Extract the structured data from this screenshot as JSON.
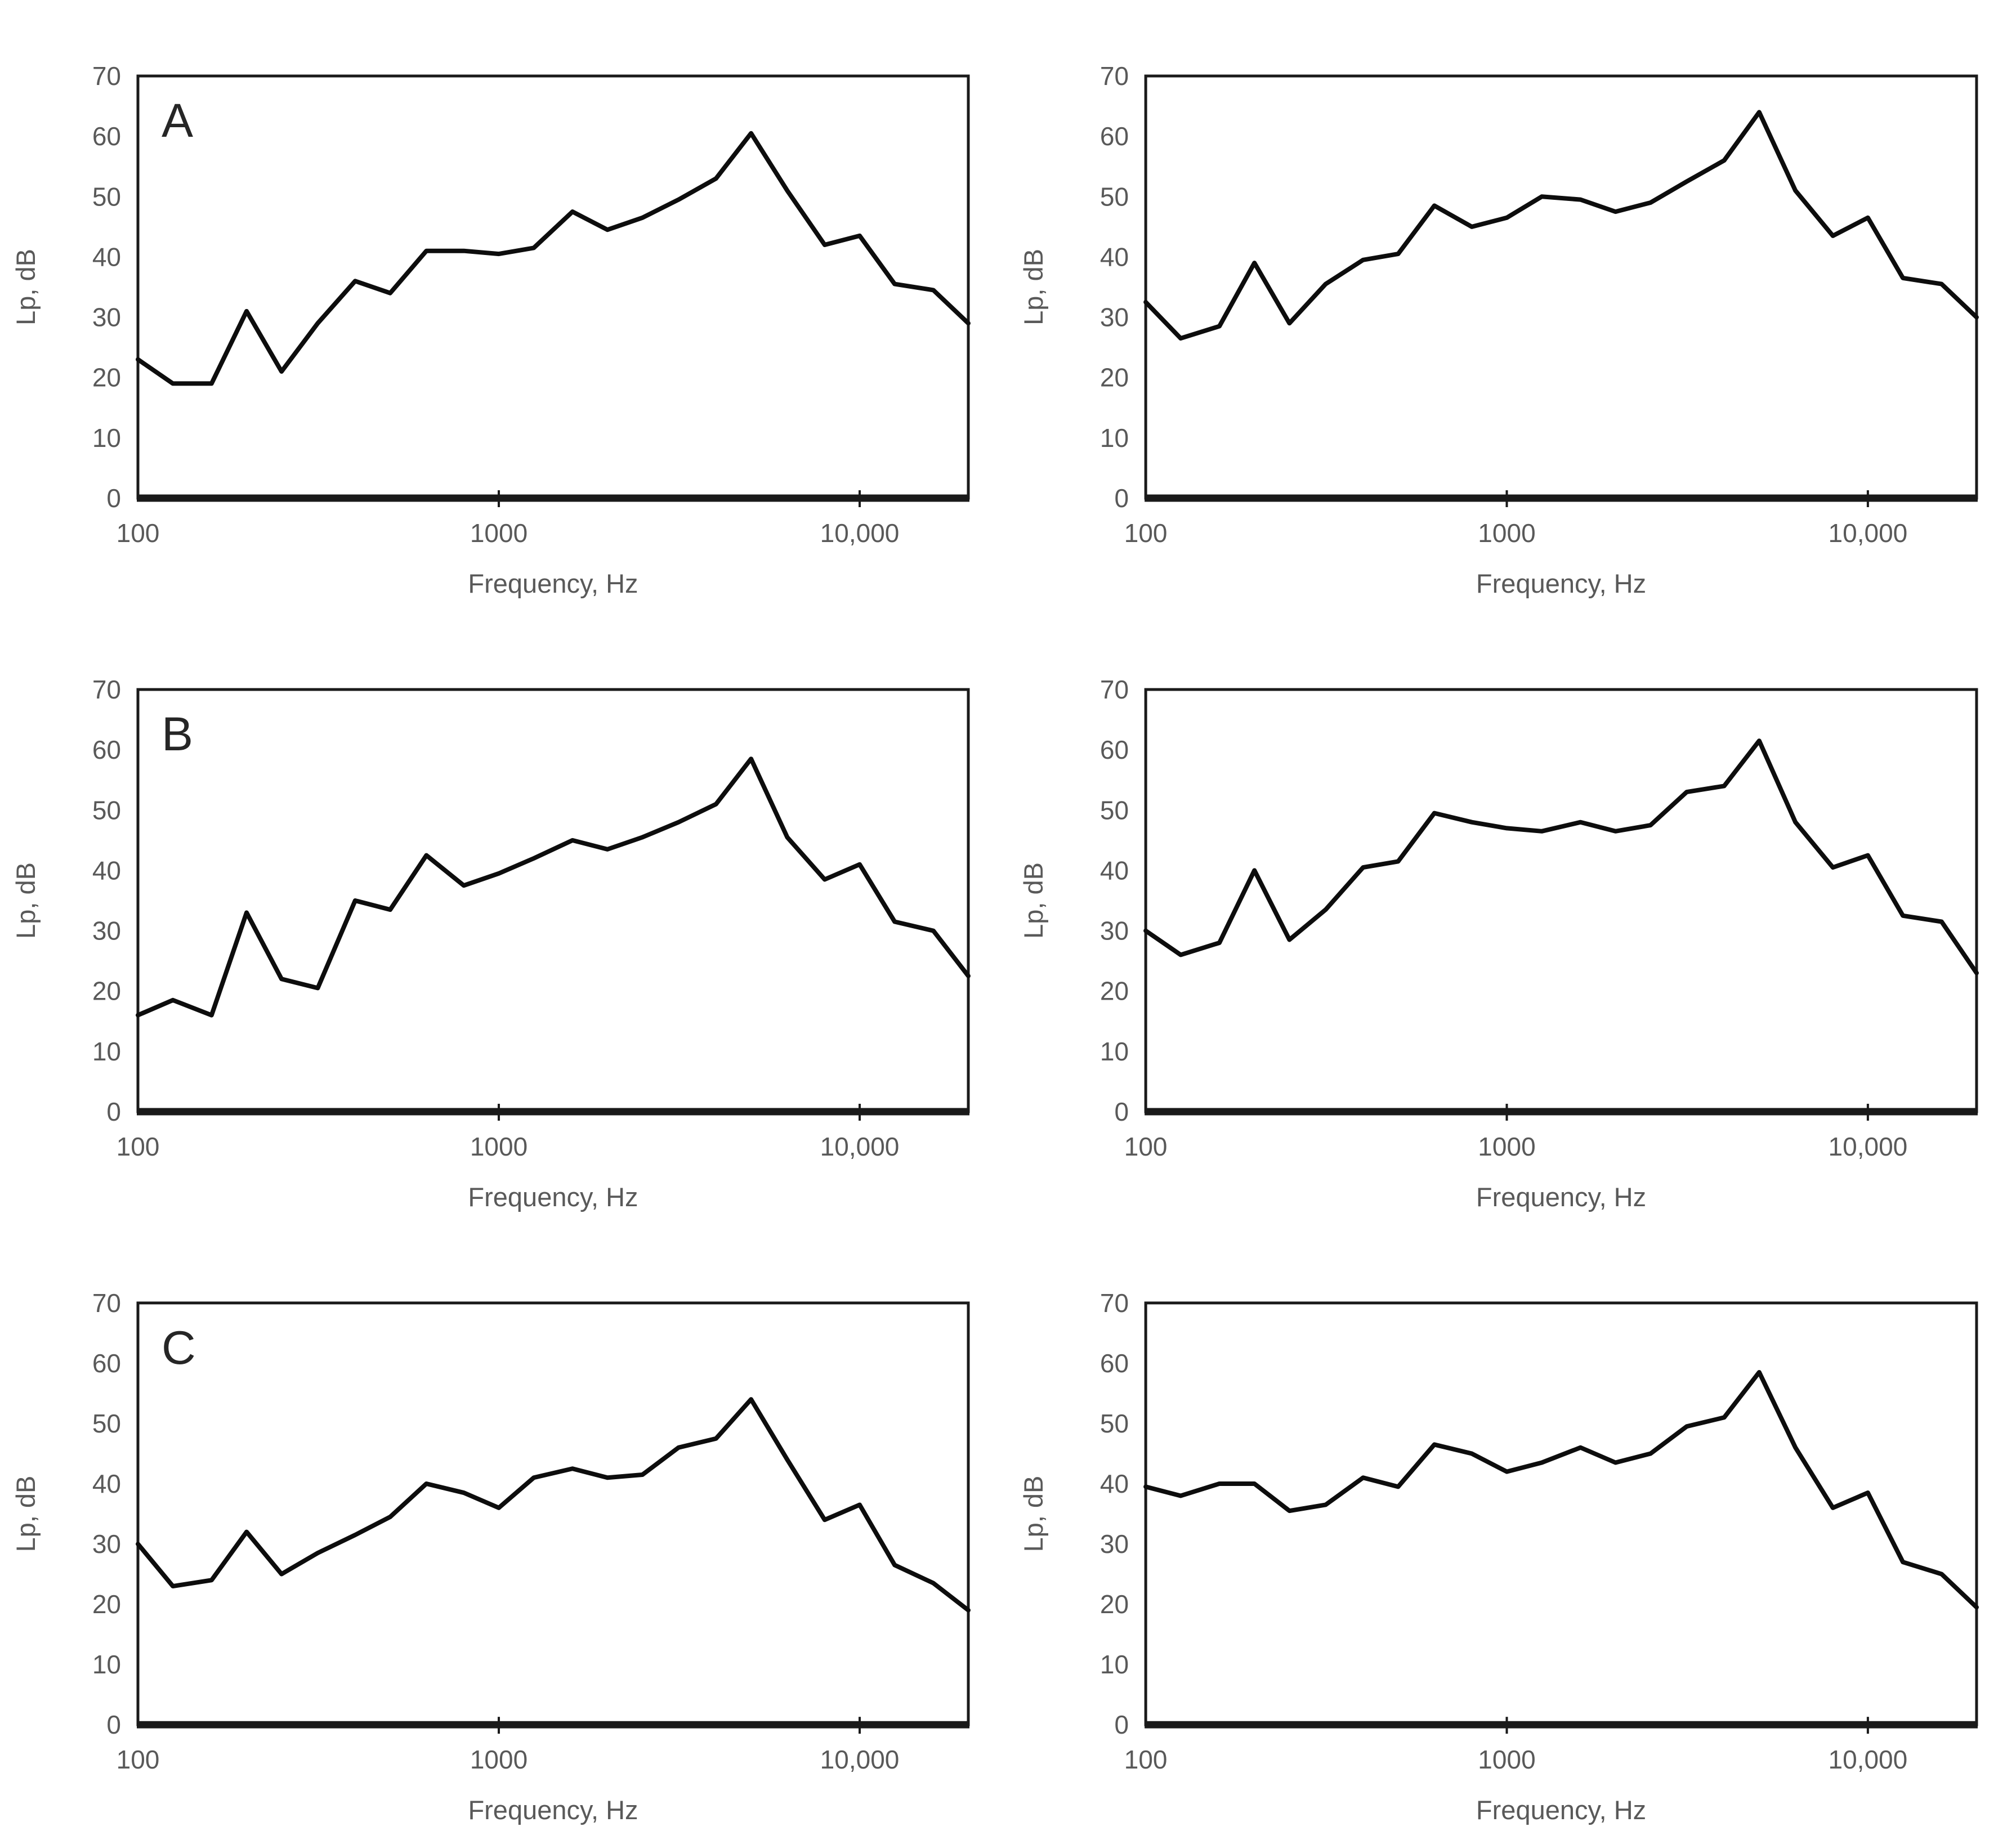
{
  "page": {
    "background": "#ffffff"
  },
  "colors": {
    "line": "#0d0d0d",
    "frame": "#1a1a1a",
    "tick_label": "#595959",
    "axis_title": "#595959",
    "panel_letter": "#262626"
  },
  "axes_common": {
    "x_label": "Frequency, Hz",
    "y_label": "Lp, dB",
    "x_scale": "log",
    "xlim": [
      100,
      20000
    ],
    "ylim": [
      0,
      70
    ],
    "x_tick_marks": [
      {
        "value": 100,
        "label": "100"
      },
      {
        "value": 1000,
        "label": "1000"
      },
      {
        "value": 10000,
        "label": "10,000"
      }
    ],
    "y_ticks": [
      0,
      10,
      20,
      30,
      40,
      50,
      60,
      70
    ]
  },
  "frequencies_hz": [
    100,
    125,
    160,
    200,
    250,
    315,
    400,
    500,
    630,
    800,
    1000,
    1250,
    1600,
    2000,
    2500,
    3150,
    4000,
    5000,
    6300,
    8000,
    10000,
    12500,
    16000,
    20000
  ],
  "chart_data": [
    {
      "type": "line",
      "panel_label": "A",
      "grid_position": "row1-col1",
      "title": "",
      "xlabel": "Frequency, Hz",
      "ylabel": "Lp, dB",
      "x_scale": "log",
      "xlim": [
        100,
        20000
      ],
      "ylim": [
        0,
        70
      ],
      "x": [
        100,
        125,
        160,
        200,
        250,
        315,
        400,
        500,
        630,
        800,
        1000,
        1250,
        1600,
        2000,
        2500,
        3150,
        4000,
        5000,
        6300,
        8000,
        10000,
        12500,
        16000,
        20000
      ],
      "y": [
        23,
        19,
        19,
        31,
        21,
        29,
        36,
        34,
        41,
        41,
        40.5,
        41.5,
        47.5,
        44.5,
        46.5,
        49.5,
        53,
        60.5,
        51,
        42,
        43.5,
        35.5,
        34.5,
        29
      ]
    },
    {
      "type": "line",
      "panel_label": "",
      "grid_position": "row1-col2",
      "title": "",
      "xlabel": "Frequency, Hz",
      "ylabel": "Lp, dB",
      "x_scale": "log",
      "xlim": [
        100,
        20000
      ],
      "ylim": [
        0,
        70
      ],
      "x": [
        100,
        125,
        160,
        200,
        250,
        315,
        400,
        500,
        630,
        800,
        1000,
        1250,
        1600,
        2000,
        2500,
        3150,
        4000,
        5000,
        6300,
        8000,
        10000,
        12500,
        16000,
        20000
      ],
      "y": [
        32.5,
        26.5,
        28.5,
        39,
        29,
        35.5,
        39.5,
        40.5,
        48.5,
        45,
        46.5,
        50,
        49.5,
        47.5,
        49,
        52.5,
        56,
        64,
        51,
        43.5,
        46.5,
        36.5,
        35.5,
        30
      ]
    },
    {
      "type": "line",
      "panel_label": "B",
      "grid_position": "row2-col1",
      "title": "",
      "xlabel": "Frequency, Hz",
      "ylabel": "Lp, dB",
      "x_scale": "log",
      "xlim": [
        100,
        20000
      ],
      "ylim": [
        0,
        70
      ],
      "x": [
        100,
        125,
        160,
        200,
        250,
        315,
        400,
        500,
        630,
        800,
        1000,
        1250,
        1600,
        2000,
        2500,
        3150,
        4000,
        5000,
        6300,
        8000,
        10000,
        12500,
        16000,
        20000
      ],
      "y": [
        16,
        18.5,
        16,
        33,
        22,
        20.5,
        35,
        33.5,
        42.5,
        37.5,
        39.5,
        42,
        45,
        43.5,
        45.5,
        48,
        51,
        58.5,
        45.5,
        38.5,
        41,
        31.5,
        30,
        22.5
      ]
    },
    {
      "type": "line",
      "panel_label": "",
      "grid_position": "row2-col2",
      "title": "",
      "xlabel": "Frequency, Hz",
      "ylabel": "Lp, dB",
      "x_scale": "log",
      "xlim": [
        100,
        20000
      ],
      "ylim": [
        0,
        70
      ],
      "x": [
        100,
        125,
        160,
        200,
        250,
        315,
        400,
        500,
        630,
        800,
        1000,
        1250,
        1600,
        2000,
        2500,
        3150,
        4000,
        5000,
        6300,
        8000,
        10000,
        12500,
        16000,
        20000
      ],
      "y": [
        30,
        26,
        28,
        40,
        28.5,
        33.5,
        40.5,
        41.5,
        49.5,
        48,
        47,
        46.5,
        48,
        46.5,
        47.5,
        53,
        54,
        61.5,
        48,
        40.5,
        42.5,
        32.5,
        31.5,
        23
      ]
    },
    {
      "type": "line",
      "panel_label": "C",
      "grid_position": "row3-col1",
      "title": "",
      "xlabel": "Frequency, Hz",
      "ylabel": "Lp, dB",
      "x_scale": "log",
      "xlim": [
        100,
        20000
      ],
      "ylim": [
        0,
        70
      ],
      "x": [
        100,
        125,
        160,
        200,
        250,
        315,
        400,
        500,
        630,
        800,
        1000,
        1250,
        1600,
        2000,
        2500,
        3150,
        4000,
        5000,
        6300,
        8000,
        10000,
        12500,
        16000,
        20000
      ],
      "y": [
        30,
        23,
        24,
        32,
        25,
        28.5,
        31.5,
        34.5,
        40,
        38.5,
        36,
        41,
        42.5,
        41,
        41.5,
        46,
        47.5,
        54,
        44,
        34,
        36.5,
        26.5,
        23.5,
        19
      ]
    },
    {
      "type": "line",
      "panel_label": "",
      "grid_position": "row3-col2",
      "title": "",
      "xlabel": "Frequency, Hz",
      "ylabel": "Lp, dB",
      "x_scale": "log",
      "xlim": [
        100,
        20000
      ],
      "ylim": [
        0,
        70
      ],
      "x": [
        100,
        125,
        160,
        200,
        250,
        315,
        400,
        500,
        630,
        800,
        1000,
        1250,
        1600,
        2000,
        2500,
        3150,
        4000,
        5000,
        6300,
        8000,
        10000,
        12500,
        16000,
        20000
      ],
      "y": [
        39.5,
        38,
        40,
        40,
        35.5,
        36.5,
        41,
        39.5,
        46.5,
        45,
        42,
        43.5,
        46,
        43.5,
        45,
        49.5,
        51,
        58.5,
        46,
        36,
        38.5,
        27,
        25,
        19.5
      ]
    }
  ]
}
